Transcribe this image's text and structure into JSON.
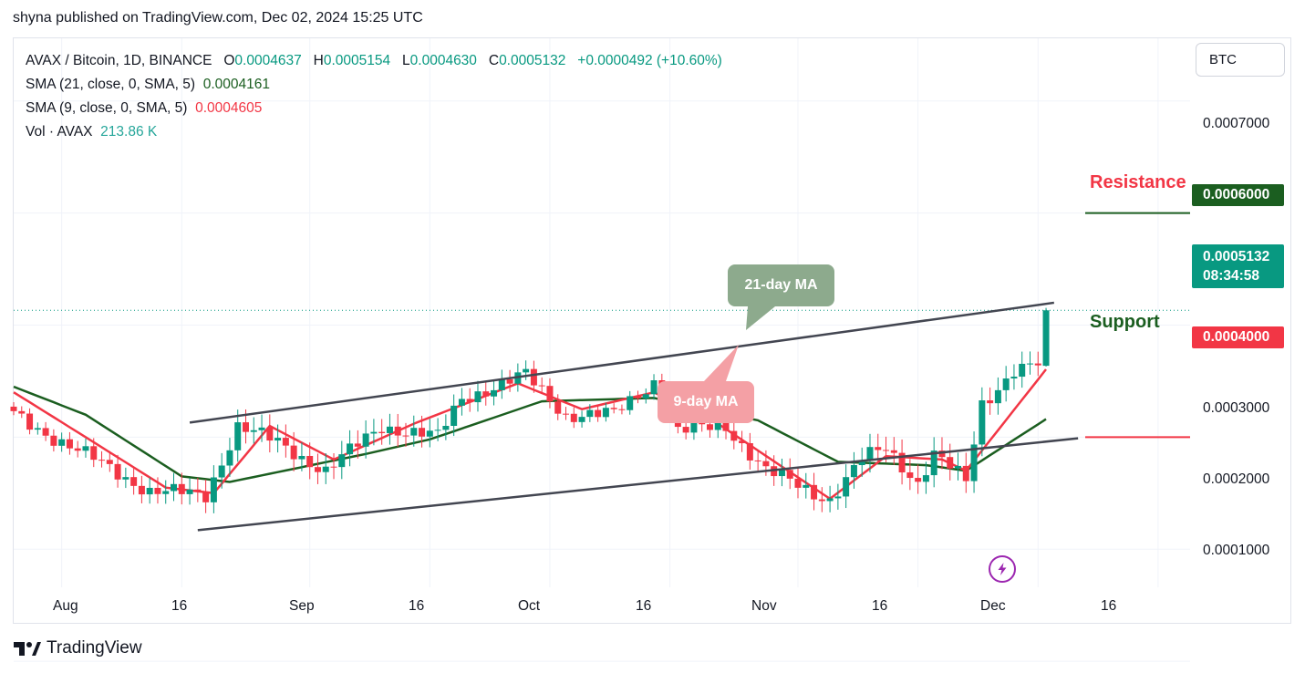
{
  "header": {
    "text": "shyna published on TradingView.com, Dec 02, 2024 15:25 UTC"
  },
  "legend": {
    "symbol": "AVAX / Bitcoin, 1D, BINANCE",
    "o_label": "O",
    "o_value": "0.0004637",
    "h_label": "H",
    "h_value": "0.0005154",
    "l_label": "L",
    "l_value": "0.0004630",
    "c_label": "C",
    "c_value": "0.0005132",
    "change": "+0.0000492 (+10.60%)",
    "sma21_label": "SMA (21, close, 0, SMA, 5)",
    "sma21_value": "0.0004161",
    "sma9_label": "SMA (9, close, 0, SMA, 5)",
    "sma9_value": "0.0004605",
    "vol_label": "Vol · AVAX",
    "vol_value": "213.86 K"
  },
  "currency_button": "BTC",
  "price_axis": [
    "0.0007000",
    "0.0003000",
    "0.0002000",
    "0.0001000"
  ],
  "price_tags": {
    "resistance_price": "0.0006000",
    "last_price": "0.0005132",
    "countdown": "08:34:58",
    "support_price": "0.0004000"
  },
  "annotations": {
    "resistance": "Resistance",
    "support": "Support",
    "ma21": "21-day MA",
    "ma9": "9-day MA"
  },
  "time_axis": [
    "Aug",
    "16",
    "Sep",
    "16",
    "Oct",
    "16",
    "Nov",
    "16",
    "Dec",
    "16"
  ],
  "footer": {
    "brand": "TradingView"
  },
  "colors": {
    "up": "#089981",
    "down": "#f23645",
    "vol_up": "#8fd3cc",
    "vol_down": "#f7a9a7",
    "sma21": "#1b5e20",
    "sma9": "#f23645",
    "resistance_tag": "#1b5e20",
    "support_tag": "#f23645",
    "ma21_bubble": "#8daa8d",
    "ma9_bubble": "#f4a0a5"
  },
  "chart_data": {
    "type": "candlestick",
    "title": "AVAX / Bitcoin, 1D, BINANCE",
    "x_range": [
      "2024-07-26",
      "2024-12-20"
    ],
    "y_range": [
      0.000266,
      0.000756
    ],
    "anchors": [
      {
        "date": "2024-07-26",
        "close": 0.00042
      },
      {
        "date": "2024-08-05",
        "close": 0.00038
      },
      {
        "date": "2024-08-12",
        "close": 0.000352
      },
      {
        "date": "2024-08-19",
        "close": 0.000348
      },
      {
        "date": "2024-08-23",
        "close": 0.00041
      },
      {
        "date": "2024-08-28",
        "close": 0.000395
      },
      {
        "date": "2024-09-03",
        "close": 0.00037
      },
      {
        "date": "2024-09-10",
        "close": 0.00041
      },
      {
        "date": "2024-09-17",
        "close": 0.0004
      },
      {
        "date": "2024-09-20",
        "close": 0.000435
      },
      {
        "date": "2024-09-28",
        "close": 0.000455
      },
      {
        "date": "2024-10-03",
        "close": 0.00042
      },
      {
        "date": "2024-10-09",
        "close": 0.00042
      },
      {
        "date": "2024-10-14",
        "close": 0.00045
      },
      {
        "date": "2024-10-17",
        "close": 0.000405
      },
      {
        "date": "2024-10-23",
        "close": 0.00041
      },
      {
        "date": "2024-10-28",
        "close": 0.00037
      },
      {
        "date": "2024-11-03",
        "close": 0.00035
      },
      {
        "date": "2024-11-05",
        "close": 0.000345
      },
      {
        "date": "2024-11-09",
        "close": 0.00038
      },
      {
        "date": "2024-11-12",
        "close": 0.00039
      },
      {
        "date": "2024-11-16",
        "close": 0.00036
      },
      {
        "date": "2024-11-18",
        "close": 0.000385
      },
      {
        "date": "2024-11-22",
        "close": 0.00036
      },
      {
        "date": "2024-11-24",
        "close": 0.00043
      },
      {
        "date": "2024-11-28",
        "close": 0.00046
      },
      {
        "date": "2024-12-01",
        "close": 0.000464
      },
      {
        "date": "2024-12-02",
        "open": 0.0004637,
        "high": 0.0005154,
        "low": 0.000463,
        "close": 0.0005132
      }
    ],
    "sma21": [
      {
        "date": "2024-07-26",
        "value": 0.000445
      },
      {
        "date": "2024-08-04",
        "value": 0.00042
      },
      {
        "date": "2024-08-16",
        "value": 0.000365
      },
      {
        "date": "2024-08-22",
        "value": 0.00036
      },
      {
        "date": "2024-09-08",
        "value": 0.000385
      },
      {
        "date": "2024-09-16",
        "value": 0.000398
      },
      {
        "date": "2024-09-30",
        "value": 0.000432
      },
      {
        "date": "2024-10-14",
        "value": 0.000435
      },
      {
        "date": "2024-10-27",
        "value": 0.000415
      },
      {
        "date": "2024-11-06",
        "value": 0.000378
      },
      {
        "date": "2024-11-17",
        "value": 0.000375
      },
      {
        "date": "2024-11-22",
        "value": 0.00037
      },
      {
        "date": "2024-12-02",
        "value": 0.0004161
      }
    ],
    "sma9": [
      {
        "date": "2024-07-26",
        "value": 0.00044
      },
      {
        "date": "2024-08-04",
        "value": 0.0004
      },
      {
        "date": "2024-08-14",
        "value": 0.000355
      },
      {
        "date": "2024-08-20",
        "value": 0.00035
      },
      {
        "date": "2024-08-27",
        "value": 0.00041
      },
      {
        "date": "2024-09-04",
        "value": 0.00038
      },
      {
        "date": "2024-09-14",
        "value": 0.000412
      },
      {
        "date": "2024-09-27",
        "value": 0.000448
      },
      {
        "date": "2024-10-05",
        "value": 0.000425
      },
      {
        "date": "2024-10-14",
        "value": 0.00044
      },
      {
        "date": "2024-10-22",
        "value": 0.000412
      },
      {
        "date": "2024-11-05",
        "value": 0.000345
      },
      {
        "date": "2024-11-12",
        "value": 0.000383
      },
      {
        "date": "2024-11-19",
        "value": 0.00038
      },
      {
        "date": "2024-11-22",
        "value": 0.00037
      },
      {
        "date": "2024-12-02",
        "value": 0.0004605
      }
    ],
    "volume_scale": [
      0,
      0.000214
    ],
    "volume_note": "volume bars share the price axis scale below 0.0002500; last bar 213.86 K",
    "trendlines": {
      "upper": [
        {
          "date": "2024-08-17",
          "price": 0.000413
        },
        {
          "date": "2024-12-03",
          "price": 0.00052
        }
      ],
      "lower": [
        {
          "date": "2024-08-18",
          "price": 0.000317
        },
        {
          "date": "2024-12-06",
          "price": 0.000399
        }
      ]
    },
    "levels": {
      "resistance": 0.0006,
      "support": 0.0004
    }
  }
}
